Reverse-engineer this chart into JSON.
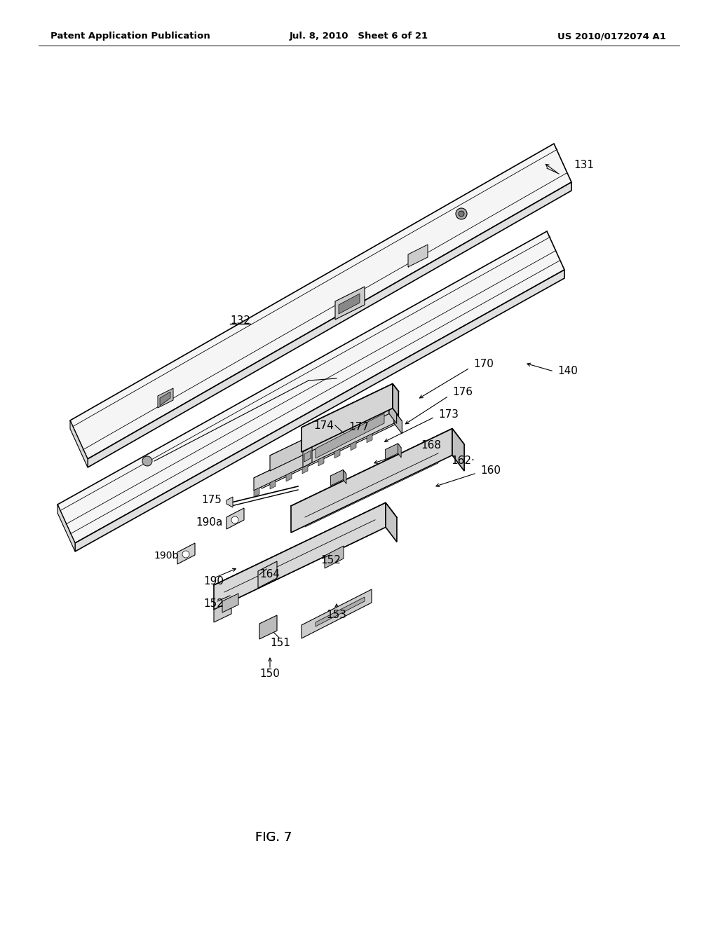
{
  "bg_color": "#ffffff",
  "header_left": "Patent Application Publication",
  "header_center": "Jul. 8, 2010   Sheet 6 of 21",
  "header_right": "US 2010/0172074 A1",
  "figure_label": "FIG. 7",
  "label_fontsize": 11,
  "header_fontsize": 9.5,
  "fig_label_fontsize": 13
}
